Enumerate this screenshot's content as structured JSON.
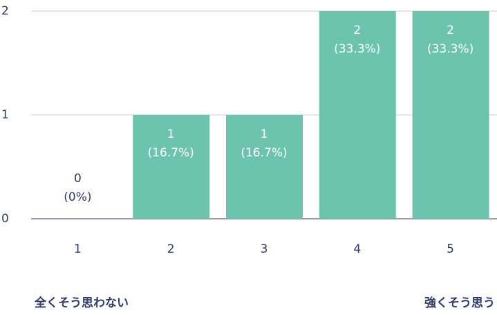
{
  "chart_data": {
    "type": "bar",
    "categories": [
      "1",
      "2",
      "3",
      "4",
      "5"
    ],
    "values": [
      0,
      1,
      1,
      2,
      2
    ],
    "percents": [
      0,
      16.7,
      16.7,
      33.3,
      33.3
    ],
    "percent_labels": [
      "(0%)",
      "(16.7%)",
      "(16.7%)",
      "(33.3%)",
      "(33.3%)"
    ],
    "color": "#6cc4ae",
    "ylim": [
      0,
      2
    ],
    "yticks": [
      0,
      1,
      2
    ],
    "grid": true,
    "annotations": [
      "全くそう思わない",
      "強くそう思う"
    ]
  }
}
